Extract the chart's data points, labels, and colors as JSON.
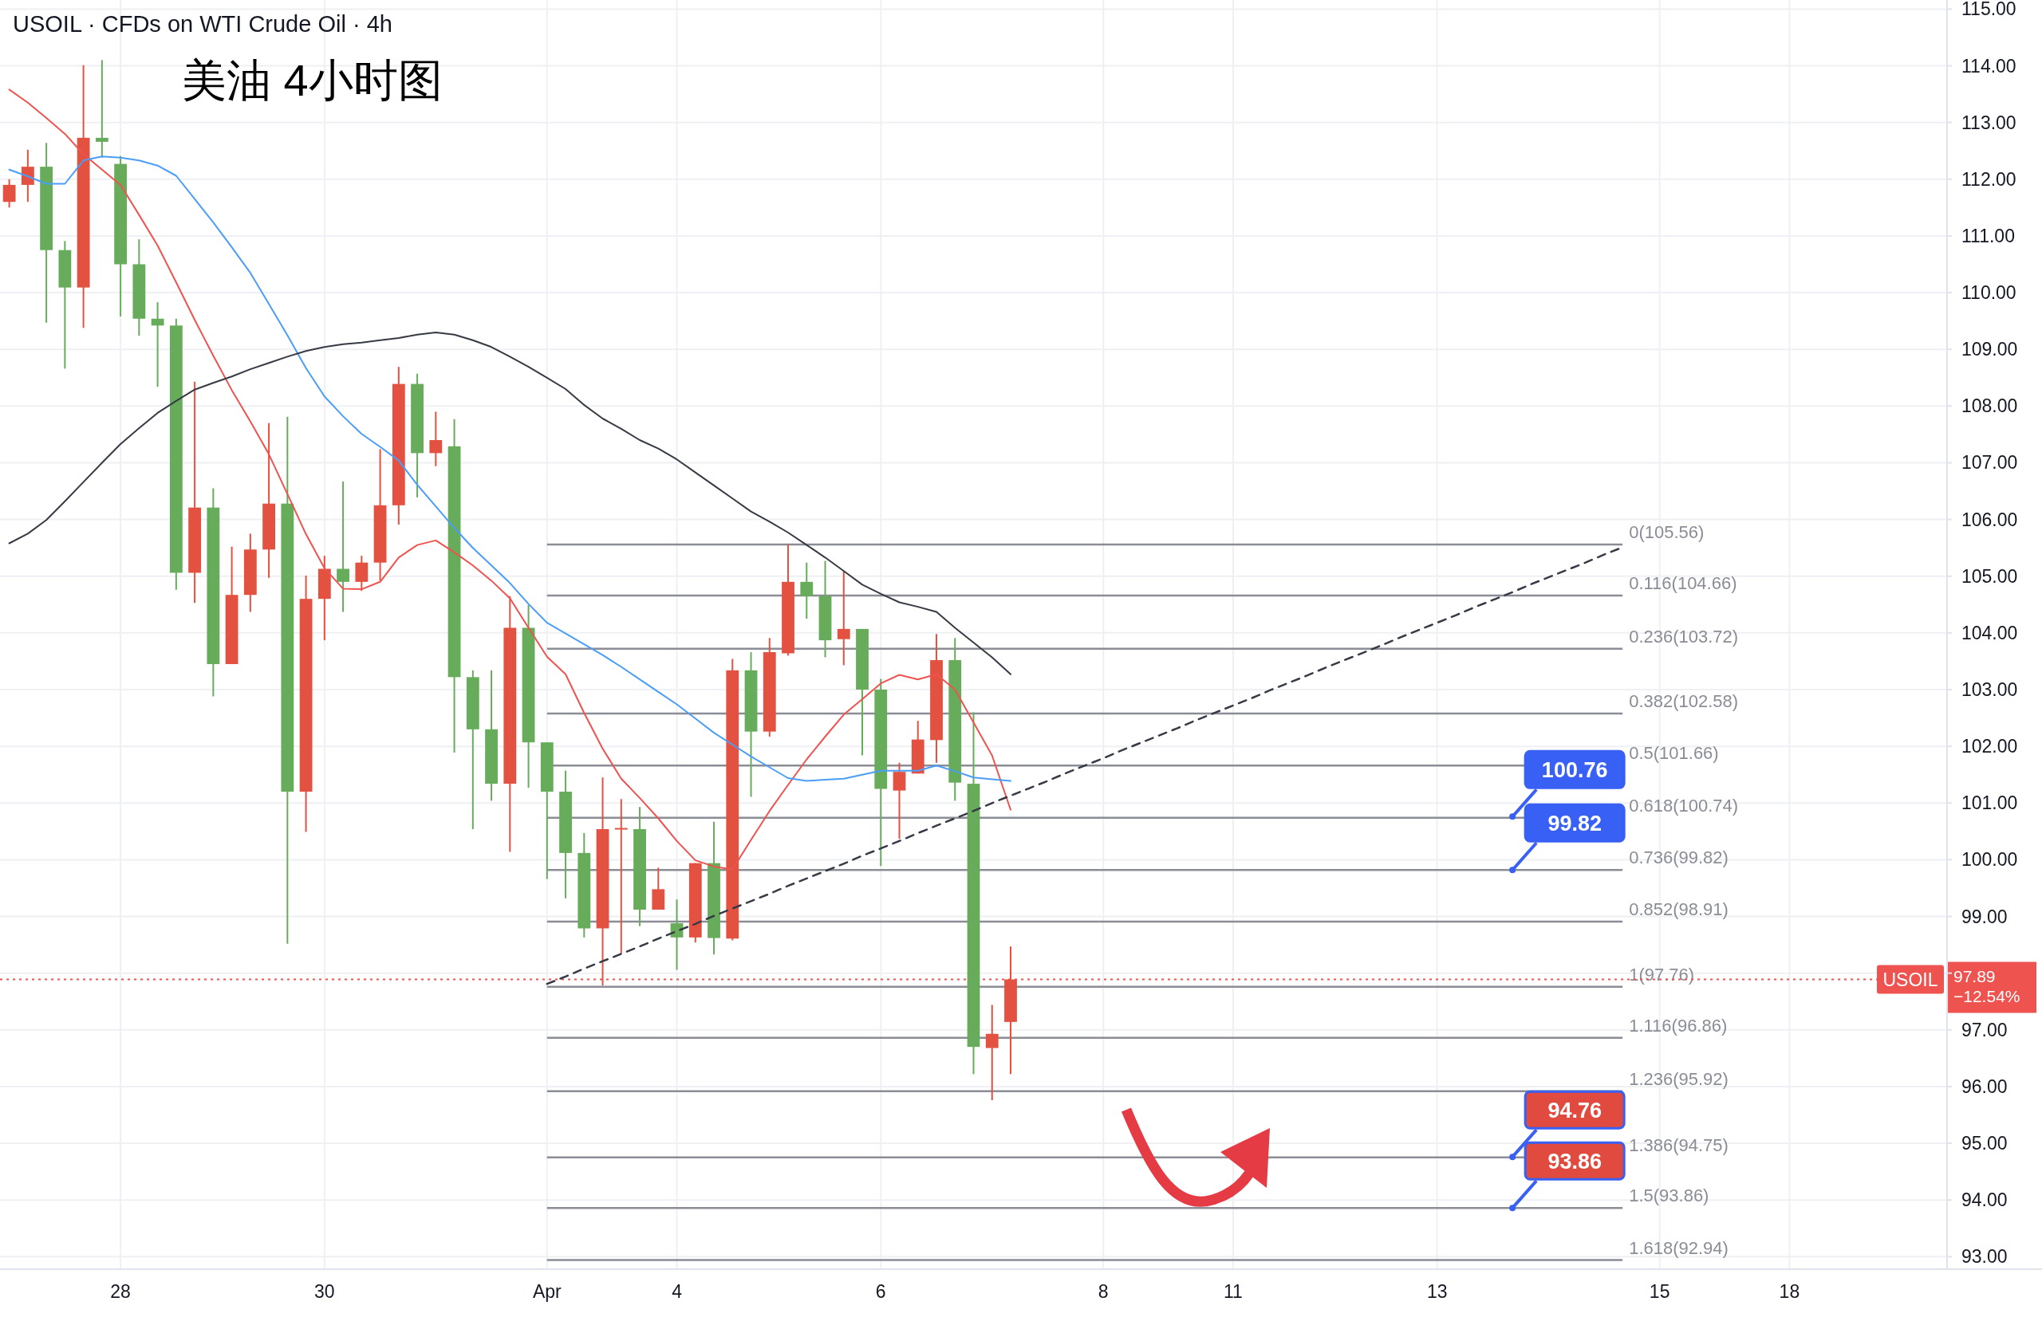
{
  "chart_data": {
    "type": "candlestick",
    "title": "USOIL · CFDs on WTI Crude Oil · 4h",
    "subtitle": "美油 4小时图",
    "categories": [
      null,
      null,
      null,
      null,
      null,
      null,
      "28",
      null,
      null,
      null,
      null,
      null,
      null,
      null,
      null,
      null,
      null,
      "30",
      null,
      null,
      null,
      null,
      null,
      null,
      null,
      null,
      null,
      null,
      null,
      "Apr",
      null,
      null,
      null,
      null,
      null,
      null,
      "4",
      null,
      null,
      null,
      null,
      null,
      null,
      null,
      null,
      null,
      null,
      "6",
      null,
      null,
      null,
      null,
      null,
      null,
      null,
      null,
      null,
      null,
      null,
      "8",
      null,
      null,
      null,
      null,
      null,
      null,
      "11",
      null,
      null,
      null,
      null,
      null,
      null,
      null,
      null,
      null,
      null,
      "13",
      null,
      null,
      null,
      null,
      null,
      null,
      null,
      null,
      null,
      null,
      null,
      "15",
      null,
      null,
      null,
      null,
      null,
      null,
      "18",
      null,
      null,
      null,
      null,
      null,
      null,
      null,
      null
    ],
    "ohlc": [
      [
        111.6,
        112.0,
        111.5,
        111.9
      ],
      [
        111.9,
        112.52,
        111.6,
        112.22
      ],
      [
        112.22,
        112.64,
        109.47,
        110.75
      ],
      [
        110.75,
        110.91,
        108.66,
        110.09
      ],
      [
        110.09,
        114.01,
        109.38,
        112.73
      ],
      [
        112.73,
        114.1,
        112.38,
        112.66
      ],
      [
        112.27,
        112.41,
        109.58,
        110.5
      ],
      [
        110.5,
        110.94,
        109.24,
        109.54
      ],
      [
        109.54,
        109.83,
        108.34,
        109.42
      ],
      [
        109.42,
        109.54,
        104.76,
        105.06
      ],
      [
        105.06,
        108.43,
        104.53,
        106.21
      ],
      [
        106.21,
        106.55,
        102.88,
        103.45
      ],
      [
        103.45,
        105.52,
        103.45,
        104.67
      ],
      [
        104.67,
        105.75,
        104.37,
        105.47
      ],
      [
        105.47,
        107.7,
        104.97,
        106.28
      ],
      [
        106.28,
        107.81,
        98.52,
        101.2
      ],
      [
        101.2,
        105.01,
        100.49,
        104.6
      ],
      [
        104.6,
        105.36,
        103.87,
        105.13
      ],
      [
        105.13,
        106.67,
        104.37,
        104.9
      ],
      [
        104.9,
        105.36,
        104.74,
        105.24
      ],
      [
        105.24,
        107.24,
        104.92,
        106.25
      ],
      [
        106.25,
        108.69,
        105.91,
        108.39
      ],
      [
        108.39,
        108.57,
        106.39,
        107.17
      ],
      [
        107.17,
        107.9,
        106.94,
        107.4
      ],
      [
        107.29,
        107.77,
        101.89,
        103.22
      ],
      [
        103.22,
        103.34,
        100.54,
        102.3
      ],
      [
        102.3,
        103.34,
        101.04,
        101.34
      ],
      [
        101.34,
        104.65,
        100.14,
        104.09
      ],
      [
        104.09,
        104.49,
        101.27,
        102.07
      ],
      [
        102.07,
        102.07,
        99.66,
        101.2
      ],
      [
        101.2,
        101.57,
        99.32,
        100.12
      ],
      [
        100.12,
        100.47,
        98.63,
        98.79
      ],
      [
        98.79,
        101.45,
        97.78,
        100.54
      ],
      [
        100.54,
        101.07,
        98.35,
        100.56
      ],
      [
        100.54,
        100.93,
        98.83,
        99.12
      ],
      [
        99.12,
        99.86,
        99.12,
        99.48
      ],
      [
        98.88,
        99.3,
        98.06,
        98.63
      ],
      [
        98.63,
        99.94,
        98.54,
        99.94
      ],
      [
        99.94,
        100.67,
        98.33,
        98.62
      ],
      [
        98.61,
        103.54,
        98.58,
        103.34
      ],
      [
        103.34,
        103.66,
        101.11,
        102.26
      ],
      [
        102.26,
        103.91,
        102.17,
        103.66
      ],
      [
        103.64,
        105.56,
        103.6,
        104.9
      ],
      [
        104.9,
        105.24,
        104.25,
        104.65
      ],
      [
        104.65,
        105.27,
        103.57,
        103.87
      ],
      [
        103.89,
        105.08,
        103.43,
        104.07
      ],
      [
        104.07,
        104.07,
        101.84,
        103.0
      ],
      [
        103.0,
        103.19,
        99.89,
        101.25
      ],
      [
        101.22,
        101.71,
        100.37,
        101.55
      ],
      [
        101.52,
        102.45,
        101.52,
        102.12
      ],
      [
        102.11,
        103.98,
        101.71,
        103.52
      ],
      [
        103.52,
        103.91,
        101.04,
        101.36
      ],
      [
        101.34,
        102.6,
        96.22,
        96.7
      ],
      [
        96.68,
        97.44,
        95.76,
        96.93
      ],
      [
        97.14,
        98.47,
        96.22,
        97.89
      ],
      null,
      null,
      null,
      null,
      null,
      null,
      null,
      null,
      null,
      null,
      null,
      null,
      null,
      null,
      null,
      null,
      null,
      null,
      null,
      null,
      null,
      null,
      null,
      null,
      null,
      null,
      null,
      null,
      null,
      null,
      null,
      null,
      null,
      null,
      null,
      null,
      null,
      null,
      null,
      null,
      null,
      null,
      null,
      null,
      null,
      null,
      null,
      null,
      null,
      null
    ],
    "colors": [
      "#e35241",
      "#e35241",
      "#67ac5b",
      "#67ac5b",
      "#e35241",
      "#67ac5b",
      "#67ac5b",
      "#67ac5b",
      "#67ac5b",
      "#67ac5b",
      "#e35241",
      "#67ac5b",
      "#e35241",
      "#e35241",
      "#e35241",
      "#67ac5b",
      "#e35241",
      "#e35241",
      "#67ac5b",
      "#e35241",
      "#e35241",
      "#e35241",
      "#67ac5b",
      "#e35241",
      "#67ac5b",
      "#67ac5b",
      "#67ac5b",
      "#e35241",
      "#67ac5b",
      "#67ac5b",
      "#67ac5b",
      "#67ac5b",
      "#e35241",
      "#e35241",
      "#67ac5b",
      "#e35241",
      "#67ac5b",
      "#e35241",
      "#67ac5b",
      "#e35241",
      "#67ac5b",
      "#e35241",
      "#e35241",
      "#67ac5b",
      "#67ac5b",
      "#e35241",
      "#67ac5b",
      "#67ac5b",
      "#e35241",
      "#e35241",
      "#e35241",
      "#67ac5b",
      "#67ac5b",
      "#e35241",
      "#e35241",
      null,
      null,
      null,
      null,
      null,
      null,
      null,
      null,
      null,
      null,
      null,
      null,
      null,
      null,
      null,
      null,
      null,
      null,
      null,
      null,
      null,
      null,
      null,
      null,
      null,
      null,
      null,
      null,
      null,
      null,
      null,
      null,
      null,
      null,
      null,
      null,
      null,
      null,
      null,
      null,
      null,
      null,
      null,
      null,
      null,
      null,
      null,
      null,
      null,
      null
    ],
    "series": [
      {
        "type": "line",
        "color": "#ef5350",
        "values": [
          113.58,
          113.35,
          113.08,
          112.8,
          112.44,
          112.17,
          111.9,
          111.37,
          110.83,
          110.18,
          109.52,
          108.89,
          108.28,
          107.73,
          107.15,
          106.45,
          105.74,
          105.14,
          104.78,
          104.77,
          104.9,
          105.33,
          105.55,
          105.63,
          105.42,
          105.19,
          104.92,
          104.61,
          104.09,
          103.58,
          103.27,
          102.59,
          101.96,
          101.43,
          101.09,
          100.73,
          100.33,
          99.99,
          99.88,
          99.83,
          100.35,
          100.86,
          101.32,
          101.77,
          102.17,
          102.56,
          102.83,
          103.11,
          103.26,
          103.18,
          103.27,
          103.0,
          102.42,
          101.84,
          100.88,
          null,
          null,
          null,
          null,
          null,
          null,
          null,
          null,
          null,
          null,
          null,
          null,
          null,
          null,
          null,
          null,
          null,
          null,
          null,
          null,
          null,
          null,
          null,
          null,
          null,
          null,
          null,
          null,
          null,
          null,
          null,
          null,
          null,
          null,
          null,
          null,
          null,
          null,
          null,
          null,
          null,
          null,
          null,
          null,
          null,
          null,
          null,
          null,
          null,
          null
        ]
      },
      {
        "type": "line",
        "color": "#4a9df8",
        "values": [
          112.17,
          112.05,
          111.92,
          111.92,
          112.33,
          112.4,
          112.38,
          112.33,
          112.24,
          112.06,
          111.65,
          111.24,
          110.8,
          110.35,
          109.8,
          109.25,
          108.67,
          108.17,
          107.82,
          107.51,
          107.28,
          107.04,
          106.61,
          106.23,
          105.85,
          105.5,
          105.19,
          104.88,
          104.51,
          104.18,
          103.99,
          103.8,
          103.61,
          103.4,
          103.18,
          102.96,
          102.74,
          102.49,
          102.24,
          102.03,
          101.82,
          101.63,
          101.44,
          101.39,
          101.41,
          101.43,
          101.5,
          101.57,
          101.57,
          101.57,
          101.66,
          101.56,
          101.45,
          101.42,
          101.39,
          null,
          null,
          null,
          null,
          null,
          null,
          null,
          null,
          null,
          null,
          null,
          null,
          null,
          null,
          null,
          null,
          null,
          null,
          null,
          null,
          null,
          null,
          null,
          null,
          null,
          null,
          null,
          null,
          null,
          null,
          null,
          null,
          null,
          null,
          null,
          null,
          null,
          null,
          null,
          null,
          null,
          null,
          null,
          null,
          null,
          null,
          null,
          null,
          null,
          null
        ]
      },
      {
        "type": "line",
        "color": "#363a45",
        "values": [
          105.58,
          105.75,
          105.99,
          106.32,
          106.66,
          107.0,
          107.33,
          107.61,
          107.88,
          108.09,
          108.29,
          108.41,
          108.52,
          108.65,
          108.76,
          108.87,
          108.97,
          109.04,
          109.09,
          109.12,
          109.16,
          109.2,
          109.26,
          109.3,
          109.26,
          109.16,
          109.04,
          108.87,
          108.69,
          108.5,
          108.3,
          108.02,
          107.78,
          107.6,
          107.4,
          107.25,
          107.06,
          106.83,
          106.6,
          106.37,
          106.14,
          105.96,
          105.77,
          105.55,
          105.33,
          105.09,
          104.85,
          104.69,
          104.54,
          104.46,
          104.37,
          104.09,
          103.83,
          103.57,
          103.27,
          null,
          null,
          null,
          null,
          null,
          null,
          null,
          null,
          null,
          null,
          null,
          null,
          null,
          null,
          null,
          null,
          null,
          null,
          null,
          null,
          null,
          null,
          null,
          null,
          null,
          null,
          null,
          null,
          null,
          null,
          null,
          null,
          null,
          null,
          null,
          null,
          null,
          null,
          null,
          null,
          null,
          null,
          null,
          null,
          null,
          null,
          null,
          null,
          null,
          null
        ]
      },
      {
        "type": "line",
        "color": "#363a45",
        "line_style": "dashed",
        "values": [
          null,
          null,
          null,
          null,
          null,
          null,
          null,
          null,
          null,
          null,
          null,
          null,
          null,
          null,
          null,
          null,
          null,
          null,
          null,
          null,
          null,
          null,
          null,
          null,
          null,
          null,
          null,
          null,
          null,
          97.81,
          97.94,
          98.08,
          98.21,
          98.34,
          98.47,
          98.61,
          98.74,
          98.87,
          99.01,
          99.14,
          99.27,
          99.4,
          99.54,
          99.67,
          99.8,
          99.93,
          100.07,
          100.2,
          100.33,
          100.47,
          100.6,
          100.73,
          100.86,
          101.0,
          101.13,
          101.26,
          101.39,
          101.53,
          101.66,
          101.79,
          101.93,
          102.06,
          102.19,
          102.32,
          102.46,
          102.59,
          102.72,
          102.85,
          102.99,
          103.12,
          103.25,
          103.39,
          103.52,
          103.65,
          103.78,
          103.92,
          104.05,
          104.18,
          104.31,
          104.45,
          104.58,
          104.71,
          104.85,
          104.98,
          105.11,
          105.24,
          105.38,
          105.51,
          null,
          null,
          null,
          null,
          null,
          null,
          null,
          null,
          null,
          null,
          null,
          null,
          null,
          null,
          null,
          null,
          null
        ]
      }
    ],
    "ref_lines": [
      {
        "axis": "y",
        "value": 105.56,
        "label": "0(105.56)",
        "color": "#8a8d96"
      },
      {
        "axis": "y",
        "value": 104.66,
        "label": "0.116(104.66)",
        "color": "#8a8d96"
      },
      {
        "axis": "y",
        "value": 103.72,
        "label": "0.236(103.72)",
        "color": "#8a8d96"
      },
      {
        "axis": "y",
        "value": 102.58,
        "label": "0.382(102.58)",
        "color": "#8a8d96"
      },
      {
        "axis": "y",
        "value": 101.66,
        "label": "0.5(101.66)",
        "color": "#8a8d96"
      },
      {
        "axis": "y",
        "value": 100.74,
        "label": "0.618(100.74)",
        "color": "#8a8d96"
      },
      {
        "axis": "y",
        "value": 99.82,
        "label": "0.736(99.82)",
        "color": "#8a8d96"
      },
      {
        "axis": "y",
        "value": 98.91,
        "label": "0.852(98.91)",
        "color": "#8a8d96"
      },
      {
        "axis": "y",
        "value": 97.76,
        "label": "1(97.76)",
        "color": "#8a8d96"
      },
      {
        "axis": "y",
        "value": 96.86,
        "label": "1.116(96.86)",
        "color": "#8a8d96"
      },
      {
        "axis": "y",
        "value": 95.92,
        "label": "1.236(95.92)",
        "color": "#8a8d96"
      },
      {
        "axis": "y",
        "value": 94.75,
        "label": "1.386(94.75)",
        "color": "#8a8d96"
      },
      {
        "axis": "y",
        "value": 93.86,
        "label": "1.5(93.86)",
        "color": "#8a8d96"
      },
      {
        "axis": "y",
        "value": 92.94,
        "label": "1.618(92.94)",
        "color": "#8a8d96"
      },
      {
        "axis": "y",
        "value": 97.89,
        "label": "USOIL",
        "color": "#ef5350",
        "line_style": "dotted"
      }
    ],
    "annotations": [
      {
        "text": "100.76",
        "y": 100.76
      },
      {
        "text": "99.82",
        "y": 99.82
      },
      {
        "text": "94.76",
        "y": 94.76
      },
      {
        "text": "93.86",
        "y": 93.86
      },
      "97.89",
      "−12.54%"
    ],
    "ylim": [
      92.78,
      115.16
    ],
    "yticks": [
      {
        "value": 93,
        "label": "93.00"
      },
      {
        "value": 94,
        "label": "94.00"
      },
      {
        "value": 95,
        "label": "95.00"
      },
      {
        "value": 96,
        "label": "96.00"
      },
      {
        "value": 97,
        "label": "97.00"
      },
      {
        "value": 98,
        "label": null
      },
      {
        "value": 99,
        "label": "99.00"
      },
      {
        "value": 100,
        "label": "100.00"
      },
      {
        "value": 101,
        "label": "101.00"
      },
      {
        "value": 102,
        "label": "102.00"
      },
      {
        "value": 103,
        "label": "103.00"
      },
      {
        "value": 104,
        "label": "104.00"
      },
      {
        "value": 105,
        "label": "105.00"
      },
      {
        "value": 106,
        "label": "106.00"
      },
      {
        "value": 107,
        "label": "107.00"
      },
      {
        "value": 108,
        "label": "108.00"
      },
      {
        "value": 109,
        "label": "109.00"
      },
      {
        "value": 110,
        "label": "110.00"
      },
      {
        "value": 111,
        "label": "111.00"
      },
      {
        "value": 112,
        "label": "112.00"
      },
      {
        "value": 113,
        "label": "113.00"
      },
      {
        "value": 114,
        "label": "114.00"
      },
      {
        "value": 115,
        "label": "115.00"
      }
    ],
    "grid": true
  }
}
